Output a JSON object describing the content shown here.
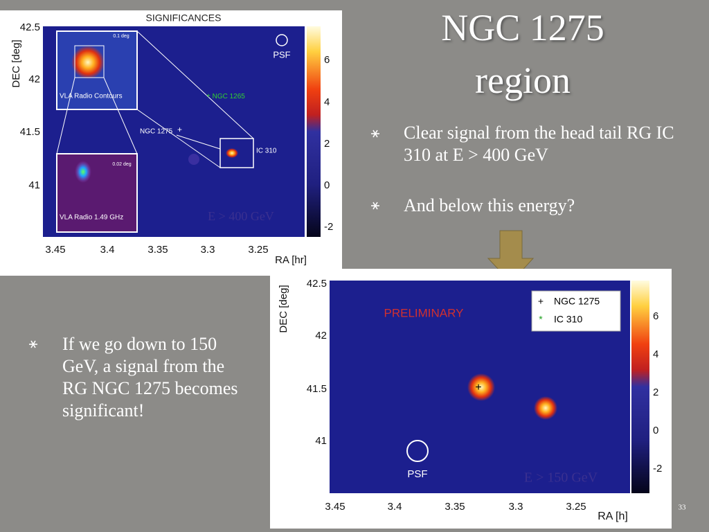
{
  "slide": {
    "title": "NGC 1275 region",
    "bullets": [
      "Clear signal from the head tail RG IC 310 at E > 400 GeV",
      "And below this energy?"
    ],
    "side_bullet": "If we go down to 150 GeV, a signal from the RG NGC 1275 becomes significant!",
    "page_number": "33"
  },
  "figure_top": {
    "title": "SIGNIFICANCES",
    "y_axis_label": "DEC [deg]",
    "x_axis_label": "RA [hr]",
    "x_ticks": [
      "3.45",
      "3.4",
      "3.35",
      "3.3",
      "3.25"
    ],
    "y_ticks": [
      "42.5",
      "42",
      "41.5",
      "41"
    ],
    "colorbar_ticks": [
      "6",
      "4",
      "2",
      "0",
      "-2"
    ],
    "psf": "PSF",
    "energy": "E > 400 GeV",
    "sources": [
      "NGC 1265",
      "NGC 1275",
      "IC 310"
    ],
    "inset_contours": {
      "scale": "0.1 deg",
      "label": "VLA Radio Contours"
    },
    "inset_radio": {
      "scale": "0.02 deg",
      "label": "VLA Radio 1.49 GHz"
    }
  },
  "figure_bottom": {
    "y_axis_label": "DEC [deg]",
    "x_axis_label": "RA [h]",
    "x_ticks": [
      "3.45",
      "3.4",
      "3.35",
      "3.3",
      "3.25"
    ],
    "y_ticks": [
      "42.5",
      "42",
      "41.5",
      "41"
    ],
    "colorbar_ticks": [
      "6",
      "4",
      "2",
      "0",
      "-2"
    ],
    "preliminary": "PRELIMINARY",
    "legend": [
      "NGC 1275",
      "IC 310"
    ],
    "psf": "PSF",
    "energy": "E > 150 GeV"
  }
}
